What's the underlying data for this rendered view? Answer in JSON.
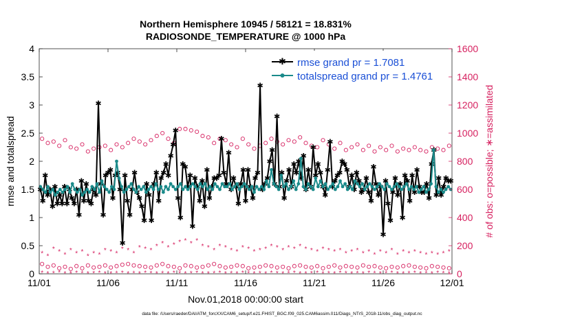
{
  "chart_data": {
    "type": "line",
    "title_line1": "Northern Hemisphere 10945 / 58121 = 18.831%",
    "title_line2": "RADIOSONDE_TEMPERATURE @ 1000 hPa",
    "ylabel_left": "rmse and totalspread",
    "ylabel_right": "# of obs: o=possible; ∗=assimilated",
    "xlabel": "Nov.01,2018 00:00:00 start",
    "footer": "data file: /Users/raeder/DAI/ATM_forcXX/CAM6_setup/f.e21.FHIST_BGC.f09_025.CAM6assim.011/Diags_NTrS_2018-11/obs_diag_output.nc",
    "x_range": [
      0,
      30
    ],
    "ylim_left": [
      0,
      4
    ],
    "ylim_right": [
      0,
      1600
    ],
    "xticks": [
      {
        "v": 0,
        "label": "11/01"
      },
      {
        "v": 5,
        "label": "11/06"
      },
      {
        "v": 10,
        "label": "11/11"
      },
      {
        "v": 15,
        "label": "11/16"
      },
      {
        "v": 20,
        "label": "11/21"
      },
      {
        "v": 25,
        "label": "11/26"
      },
      {
        "v": 30,
        "label": "12/01"
      }
    ],
    "yticks_left": [
      "0",
      "0.5",
      "1",
      "1.5",
      "2",
      "2.5",
      "3",
      "3.5",
      "4"
    ],
    "yticks_right": [
      "0",
      "200",
      "400",
      "600",
      "800",
      "1000",
      "1200",
      "1400",
      "1600"
    ],
    "colors": {
      "rmse": "#000000",
      "spread": "#1a8a8a",
      "obs": "#d6205f",
      "legend_text": "#1a4fd6"
    },
    "series": [
      {
        "name": "rmse grand pr = 1.7081",
        "key": "rmse",
        "values": [
          1.5,
          1.3,
          1.75,
          1.4,
          1.5,
          1.2,
          1.55,
          1.25,
          1.4,
          1.25,
          1.55,
          1.25,
          1.5,
          1.35,
          1.25,
          1.5,
          1.05,
          1.65,
          1.3,
          1.6,
          1.3,
          1.25,
          1.5,
          1.4,
          3.03,
          1.6,
          1.05,
          1.75,
          1.8,
          1.85,
          1.35,
          1.75,
          1.8,
          1.5,
          0.55,
          1.75,
          1.3,
          1.05,
          1.5,
          1.8,
          1.45,
          1.35,
          1.2,
          0.95,
          1.6,
          1.4,
          0.95,
          1.6,
          1.8,
          1.3,
          1.7,
          1.8,
          1.95,
          1.75,
          2.1,
          2.3,
          2.55,
          1.35,
          1.0,
          1.95,
          1.9,
          1.55,
          1.75,
          0.85,
          1.7,
          1.55,
          1.3,
          1.65,
          1.2,
          1.85,
          1.35,
          1.55,
          1.7,
          1.7,
          1.75,
          2.4,
          1.8,
          1.6,
          2.15,
          1.5,
          1.7,
          1.55,
          1.25,
          1.6,
          1.85,
          1.3,
          1.85,
          1.55,
          1.35,
          1.7,
          1.8,
          3.35,
          1.5,
          1.6,
          1.7,
          2.0,
          2.2,
          1.6,
          2.8,
          1.55,
          1.8,
          1.35,
          1.65,
          1.85,
          1.55,
          1.95,
          1.8,
          2.0,
          1.7,
          2.1,
          1.5,
          1.85,
          1.55,
          2.25,
          1.75,
          1.95,
          1.8,
          1.55,
          1.4,
          1.85,
          2.35,
          1.55,
          1.65,
          1.75,
          1.8,
          2.0,
          1.95,
          1.85,
          1.55,
          1.75,
          1.5,
          1.8,
          1.65,
          1.45,
          1.5,
          1.7,
          1.45,
          1.3,
          1.9,
          1.6,
          1.4,
          1.55,
          0.7,
          1.65,
          1.25,
          0.95,
          1.45,
          1.7,
          1.4,
          1.6,
          1.0,
          1.75,
          1.65,
          1.3,
          1.75,
          1.45,
          1.85,
          1.55,
          1.45,
          1.45,
          1.6,
          1.35,
          1.95,
          2.2,
          1.4,
          1.7,
          1.4,
          1.55,
          1.7,
          1.65,
          1.65
        ]
      },
      {
        "name": "totalspread grand pr = 1.4761",
        "key": "spread",
        "values": [
          1.55,
          1.5,
          1.45,
          1.55,
          1.45,
          1.5,
          1.4,
          1.45,
          1.5,
          1.45,
          1.5,
          1.55,
          1.45,
          1.6,
          1.5,
          1.45,
          1.5,
          1.4,
          1.45,
          1.5,
          1.45,
          1.55,
          1.5,
          1.6,
          1.45,
          1.65,
          1.55,
          1.5,
          1.45,
          1.55,
          1.5,
          2.0,
          1.7,
          1.55,
          1.45,
          1.5,
          1.55,
          1.6,
          1.5,
          1.45,
          1.55,
          1.5,
          1.55,
          1.45,
          1.5,
          1.55,
          1.5,
          1.6,
          1.5,
          1.55,
          1.45,
          1.55,
          1.5,
          1.6,
          1.55,
          1.5,
          1.55,
          1.6,
          1.5,
          1.55,
          1.5,
          1.55,
          1.6,
          1.55,
          1.5,
          1.6,
          1.55,
          1.6,
          1.5,
          1.55,
          1.5,
          1.6,
          1.55,
          1.5,
          1.6,
          1.55,
          1.55,
          1.6,
          1.5,
          1.55,
          1.6,
          1.5,
          1.55,
          1.6,
          1.55,
          1.5,
          1.55,
          1.45,
          1.55,
          1.5,
          1.55,
          1.5,
          1.65,
          1.55,
          1.85,
          1.6,
          1.55,
          1.5,
          1.75,
          1.55,
          1.6,
          1.5,
          1.55,
          1.65,
          1.5,
          1.6,
          2.05,
          1.55,
          1.5,
          1.6,
          1.55,
          1.5,
          1.7,
          1.55,
          1.65,
          1.55,
          1.6,
          1.5,
          1.55,
          1.6,
          1.5,
          1.55,
          1.65,
          1.55,
          1.6,
          1.5,
          1.55,
          1.5,
          1.65,
          1.6,
          1.55,
          1.6,
          1.5,
          1.55,
          1.6,
          1.55,
          1.5,
          1.55,
          1.6,
          1.55,
          1.5,
          1.6,
          1.55,
          1.5,
          1.55,
          1.6,
          1.55,
          1.5,
          1.55,
          1.6,
          1.5,
          1.55,
          1.5,
          1.55,
          1.45,
          1.5,
          1.55,
          1.45,
          1.5,
          1.6,
          2.2,
          1.55,
          1.45,
          1.5,
          1.45,
          1.5,
          1.55,
          1.5
        ]
      }
    ],
    "obs_possible": [
      960,
      930,
      940,
      910,
      950,
      900,
      890,
      920,
      870,
      890,
      900,
      910,
      880,
      920,
      900,
      930,
      960,
      940,
      920,
      950,
      980,
      1000,
      960,
      930,
      1030,
      1030,
      1020,
      1010,
      980,
      970,
      930,
      960,
      950,
      920,
      900,
      960,
      920,
      890,
      910,
      930,
      960,
      940,
      920,
      950,
      940,
      970,
      930,
      910,
      900,
      950,
      920,
      890,
      930,
      880,
      900,
      920,
      880,
      910,
      870,
      900,
      880,
      910,
      870,
      890,
      880,
      900,
      880,
      870,
      900,
      890,
      880,
      910
    ],
    "obs_assimilated": [
      150,
      130,
      180,
      160,
      140,
      170,
      150,
      160,
      130,
      150,
      140,
      170,
      160,
      150,
      180,
      170,
      150,
      190,
      180,
      170,
      200,
      220,
      190,
      210,
      230,
      240,
      220,
      240,
      200,
      190,
      170,
      200,
      190,
      170,
      160,
      190,
      180,
      160,
      170,
      180,
      200,
      190,
      170,
      190,
      180,
      200,
      180,
      170,
      160,
      180,
      170,
      160,
      170,
      150,
      160,
      170,
      150,
      160,
      140,
      160,
      150,
      170,
      140,
      160,
      150,
      160,
      150,
      140,
      150,
      140,
      150,
      160
    ],
    "obs_possible_low": [
      70,
      50,
      60,
      40,
      50,
      35,
      55,
      40,
      60,
      45,
      50,
      60,
      45,
      55,
      65,
      70,
      60,
      55,
      50,
      45,
      60,
      70,
      55,
      50,
      40,
      60,
      55,
      45,
      50,
      60,
      70,
      55,
      45,
      50,
      60,
      55,
      40,
      45,
      50,
      60,
      55,
      45,
      50,
      40,
      55,
      60,
      50,
      45,
      55,
      40,
      50,
      60,
      45,
      55,
      50,
      45,
      60,
      50,
      55,
      45,
      40,
      50,
      45,
      55,
      60,
      50,
      45,
      40,
      55,
      50,
      45,
      40
    ],
    "obs_assimilated_low": [
      10,
      5,
      8,
      12,
      6,
      4,
      9,
      7,
      5,
      8,
      10,
      6,
      4,
      7,
      9,
      5,
      8,
      6,
      10,
      7,
      5,
      8,
      6,
      9,
      7,
      5,
      8,
      10,
      6,
      4,
      7,
      9,
      5,
      8,
      6,
      10,
      7,
      5,
      8,
      6,
      9,
      7,
      5,
      8,
      10,
      6,
      4,
      7,
      9,
      5,
      8,
      6,
      10,
      7,
      5,
      8,
      6,
      9,
      7,
      5,
      8,
      10,
      6,
      4,
      7,
      9,
      5,
      8,
      6,
      10,
      7,
      5
    ]
  }
}
